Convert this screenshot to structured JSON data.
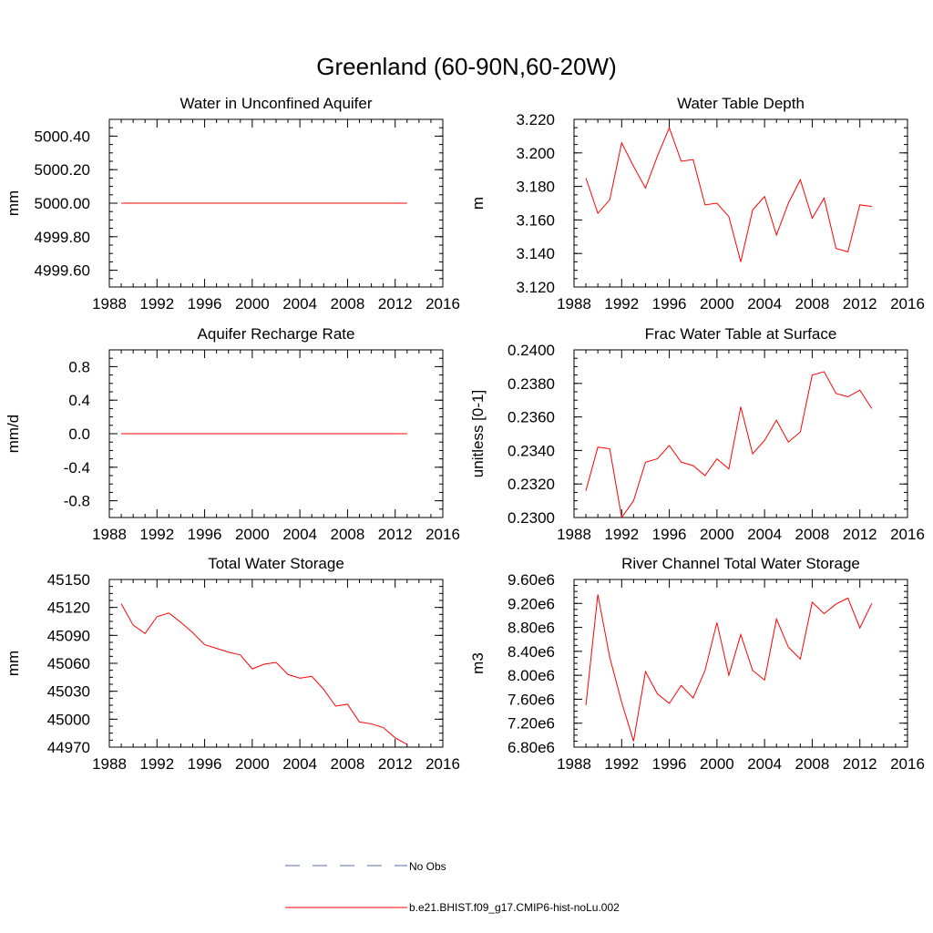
{
  "figure": {
    "title": "Greenland (60-90N,60-20W)",
    "legend": [
      {
        "label": "No Obs",
        "style": "dashed",
        "color": "#5a6fb0"
      },
      {
        "label": "b.e21.BHIST.f09_g17.CMIP6-hist-noLu.002",
        "style": "solid",
        "color": "#ff0000"
      }
    ]
  },
  "chart_data": [
    {
      "type": "line",
      "title": "Water in Unconfined Aquifer",
      "xlabel": "",
      "ylabel": "mm",
      "xlim": [
        1988,
        2016
      ],
      "ylim": [
        4999.5,
        5000.5
      ],
      "xticks": [
        1988,
        1992,
        1996,
        2000,
        2004,
        2008,
        2012,
        2016
      ],
      "yticks": [
        4999.6,
        4999.8,
        5000.0,
        5000.2,
        5000.4
      ],
      "ytick_labels": [
        "4999.60",
        "4999.80",
        "5000.00",
        "5000.20",
        "5000.40"
      ],
      "series": [
        {
          "name": "b.e21.BHIST.f09_g17.CMIP6-hist-noLu.002",
          "color": "#ff0000",
          "x": [
            1989,
            1990,
            1991,
            1992,
            1993,
            1994,
            1995,
            1996,
            1997,
            1998,
            1999,
            2000,
            2001,
            2002,
            2003,
            2004,
            2005,
            2006,
            2007,
            2008,
            2009,
            2010,
            2011,
            2012,
            2013
          ],
          "y": [
            5000,
            5000,
            5000,
            5000,
            5000,
            5000,
            5000,
            5000,
            5000,
            5000,
            5000,
            5000,
            5000,
            5000,
            5000,
            5000,
            5000,
            5000,
            5000,
            5000,
            5000,
            5000,
            5000,
            5000,
            5000
          ]
        }
      ]
    },
    {
      "type": "line",
      "title": "Water Table Depth",
      "xlabel": "",
      "ylabel": "m",
      "xlim": [
        1988,
        2016
      ],
      "ylim": [
        3.12,
        3.22
      ],
      "xticks": [
        1988,
        1992,
        1996,
        2000,
        2004,
        2008,
        2012,
        2016
      ],
      "yticks": [
        3.12,
        3.14,
        3.16,
        3.18,
        3.2,
        3.22
      ],
      "ytick_labels": [
        "3.120",
        "3.140",
        "3.160",
        "3.180",
        "3.200",
        "3.220"
      ],
      "series": [
        {
          "name": "b.e21.BHIST.f09_g17.CMIP6-hist-noLu.002",
          "color": "#ff0000",
          "x": [
            1989,
            1990,
            1991,
            1992,
            1993,
            1994,
            1995,
            1996,
            1997,
            1998,
            1999,
            2000,
            2001,
            2002,
            2003,
            2004,
            2005,
            2006,
            2007,
            2008,
            2009,
            2010,
            2011,
            2012,
            2013
          ],
          "y": [
            3.185,
            3.164,
            3.172,
            3.206,
            3.192,
            3.179,
            3.198,
            3.215,
            3.195,
            3.196,
            3.169,
            3.17,
            3.162,
            3.135,
            3.166,
            3.174,
            3.151,
            3.17,
            3.184,
            3.161,
            3.173,
            3.143,
            3.141,
            3.169,
            3.168
          ]
        }
      ]
    },
    {
      "type": "line",
      "title": "Aquifer Recharge Rate",
      "xlabel": "",
      "ylabel": "mm/d",
      "xlim": [
        1988,
        2016
      ],
      "ylim": [
        -1.0,
        1.0
      ],
      "xticks": [
        1988,
        1992,
        1996,
        2000,
        2004,
        2008,
        2012,
        2016
      ],
      "yticks": [
        -0.8,
        -0.4,
        0.0,
        0.4,
        0.8
      ],
      "ytick_labels": [
        "-0.8",
        "-0.4",
        "0.0",
        "0.4",
        "0.8"
      ],
      "series": [
        {
          "name": "b.e21.BHIST.f09_g17.CMIP6-hist-noLu.002",
          "color": "#ff0000",
          "x": [
            1989,
            1990,
            1991,
            1992,
            1993,
            1994,
            1995,
            1996,
            1997,
            1998,
            1999,
            2000,
            2001,
            2002,
            2003,
            2004,
            2005,
            2006,
            2007,
            2008,
            2009,
            2010,
            2011,
            2012,
            2013
          ],
          "y": [
            0,
            0,
            0,
            0,
            0,
            0,
            0,
            0,
            0,
            0,
            0,
            0,
            0,
            0,
            0,
            0,
            0,
            0,
            0,
            0,
            0,
            0,
            0,
            0,
            0
          ]
        }
      ]
    },
    {
      "type": "line",
      "title": "Frac Water Table at Surface",
      "xlabel": "",
      "ylabel": "unitless [0-1]",
      "xlim": [
        1988,
        2016
      ],
      "ylim": [
        0.23,
        0.24
      ],
      "xticks": [
        1988,
        1992,
        1996,
        2000,
        2004,
        2008,
        2012,
        2016
      ],
      "yticks": [
        0.23,
        0.232,
        0.234,
        0.236,
        0.238,
        0.24
      ],
      "ytick_labels": [
        "0.2300",
        "0.2320",
        "0.2340",
        "0.2360",
        "0.2380",
        "0.2400"
      ],
      "series": [
        {
          "name": "b.e21.BHIST.f09_g17.CMIP6-hist-noLu.002",
          "color": "#ff0000",
          "x": [
            1989,
            1990,
            1991,
            1992,
            1993,
            1994,
            1995,
            1996,
            1997,
            1998,
            1999,
            2000,
            2001,
            2002,
            2003,
            2004,
            2005,
            2006,
            2007,
            2008,
            2009,
            2010,
            2011,
            2012,
            2013
          ],
          "y": [
            0.2316,
            0.2342,
            0.2341,
            0.23,
            0.231,
            0.2333,
            0.2335,
            0.2343,
            0.2333,
            0.2331,
            0.2325,
            0.2335,
            0.2329,
            0.2366,
            0.2338,
            0.2346,
            0.2358,
            0.2345,
            0.2351,
            0.2385,
            0.2387,
            0.2374,
            0.2372,
            0.2376,
            0.2365
          ]
        }
      ]
    },
    {
      "type": "line",
      "title": "Total Water Storage",
      "xlabel": "",
      "ylabel": "mm",
      "xlim": [
        1988,
        2016
      ],
      "ylim": [
        44970,
        45150
      ],
      "xticks": [
        1988,
        1992,
        1996,
        2000,
        2004,
        2008,
        2012,
        2016
      ],
      "yticks": [
        44970,
        45000,
        45030,
        45060,
        45090,
        45120,
        45150
      ],
      "ytick_labels": [
        "44970",
        "45000",
        "45030",
        "45060",
        "45090",
        "45120",
        "45150"
      ],
      "series": [
        {
          "name": "b.e21.BHIST.f09_g17.CMIP6-hist-noLu.002",
          "color": "#ff0000",
          "x": [
            1989,
            1990,
            1991,
            1992,
            1993,
            1994,
            1995,
            1996,
            1997,
            1998,
            1999,
            2000,
            2001,
            2002,
            2003,
            2004,
            2005,
            2006,
            2007,
            2008,
            2009,
            2010,
            2011,
            2012,
            2013
          ],
          "y": [
            45124,
            45101,
            45092,
            45110,
            45114,
            45104,
            45093,
            45080,
            45076,
            45072,
            45069,
            45054,
            45059,
            45061,
            45048,
            45044,
            45046,
            45032,
            45014,
            45016,
            44997,
            44995,
            44991,
            44980,
            44973
          ]
        }
      ]
    },
    {
      "type": "line",
      "title": "River Channel Total Water Storage",
      "xlabel": "",
      "ylabel": "m3",
      "xlim": [
        1988,
        2016
      ],
      "ylim": [
        6800000,
        9600000
      ],
      "xticks": [
        1988,
        1992,
        1996,
        2000,
        2004,
        2008,
        2012,
        2016
      ],
      "yticks": [
        6800000,
        7200000,
        7600000,
        8000000,
        8400000,
        8800000,
        9200000,
        9600000
      ],
      "ytick_labels": [
        "6.80e6",
        "7.20e6",
        "7.60e6",
        "8.00e6",
        "8.40e6",
        "8.80e6",
        "9.20e6",
        "9.60e6"
      ],
      "series": [
        {
          "name": "b.e21.BHIST.f09_g17.CMIP6-hist-noLu.002",
          "color": "#ff0000",
          "x": [
            1989,
            1990,
            1991,
            1992,
            1993,
            1994,
            1995,
            1996,
            1997,
            1998,
            1999,
            2000,
            2001,
            2002,
            2003,
            2004,
            2005,
            2006,
            2007,
            2008,
            2009,
            2010,
            2011,
            2012,
            2013
          ],
          "y": [
            7500000,
            9350000,
            8300000,
            7550000,
            6900000,
            8060000,
            7690000,
            7530000,
            7830000,
            7620000,
            8080000,
            8880000,
            8000000,
            8680000,
            8080000,
            7920000,
            8940000,
            8470000,
            8270000,
            9220000,
            9030000,
            9190000,
            9290000,
            8790000,
            9200000
          ]
        }
      ]
    }
  ]
}
